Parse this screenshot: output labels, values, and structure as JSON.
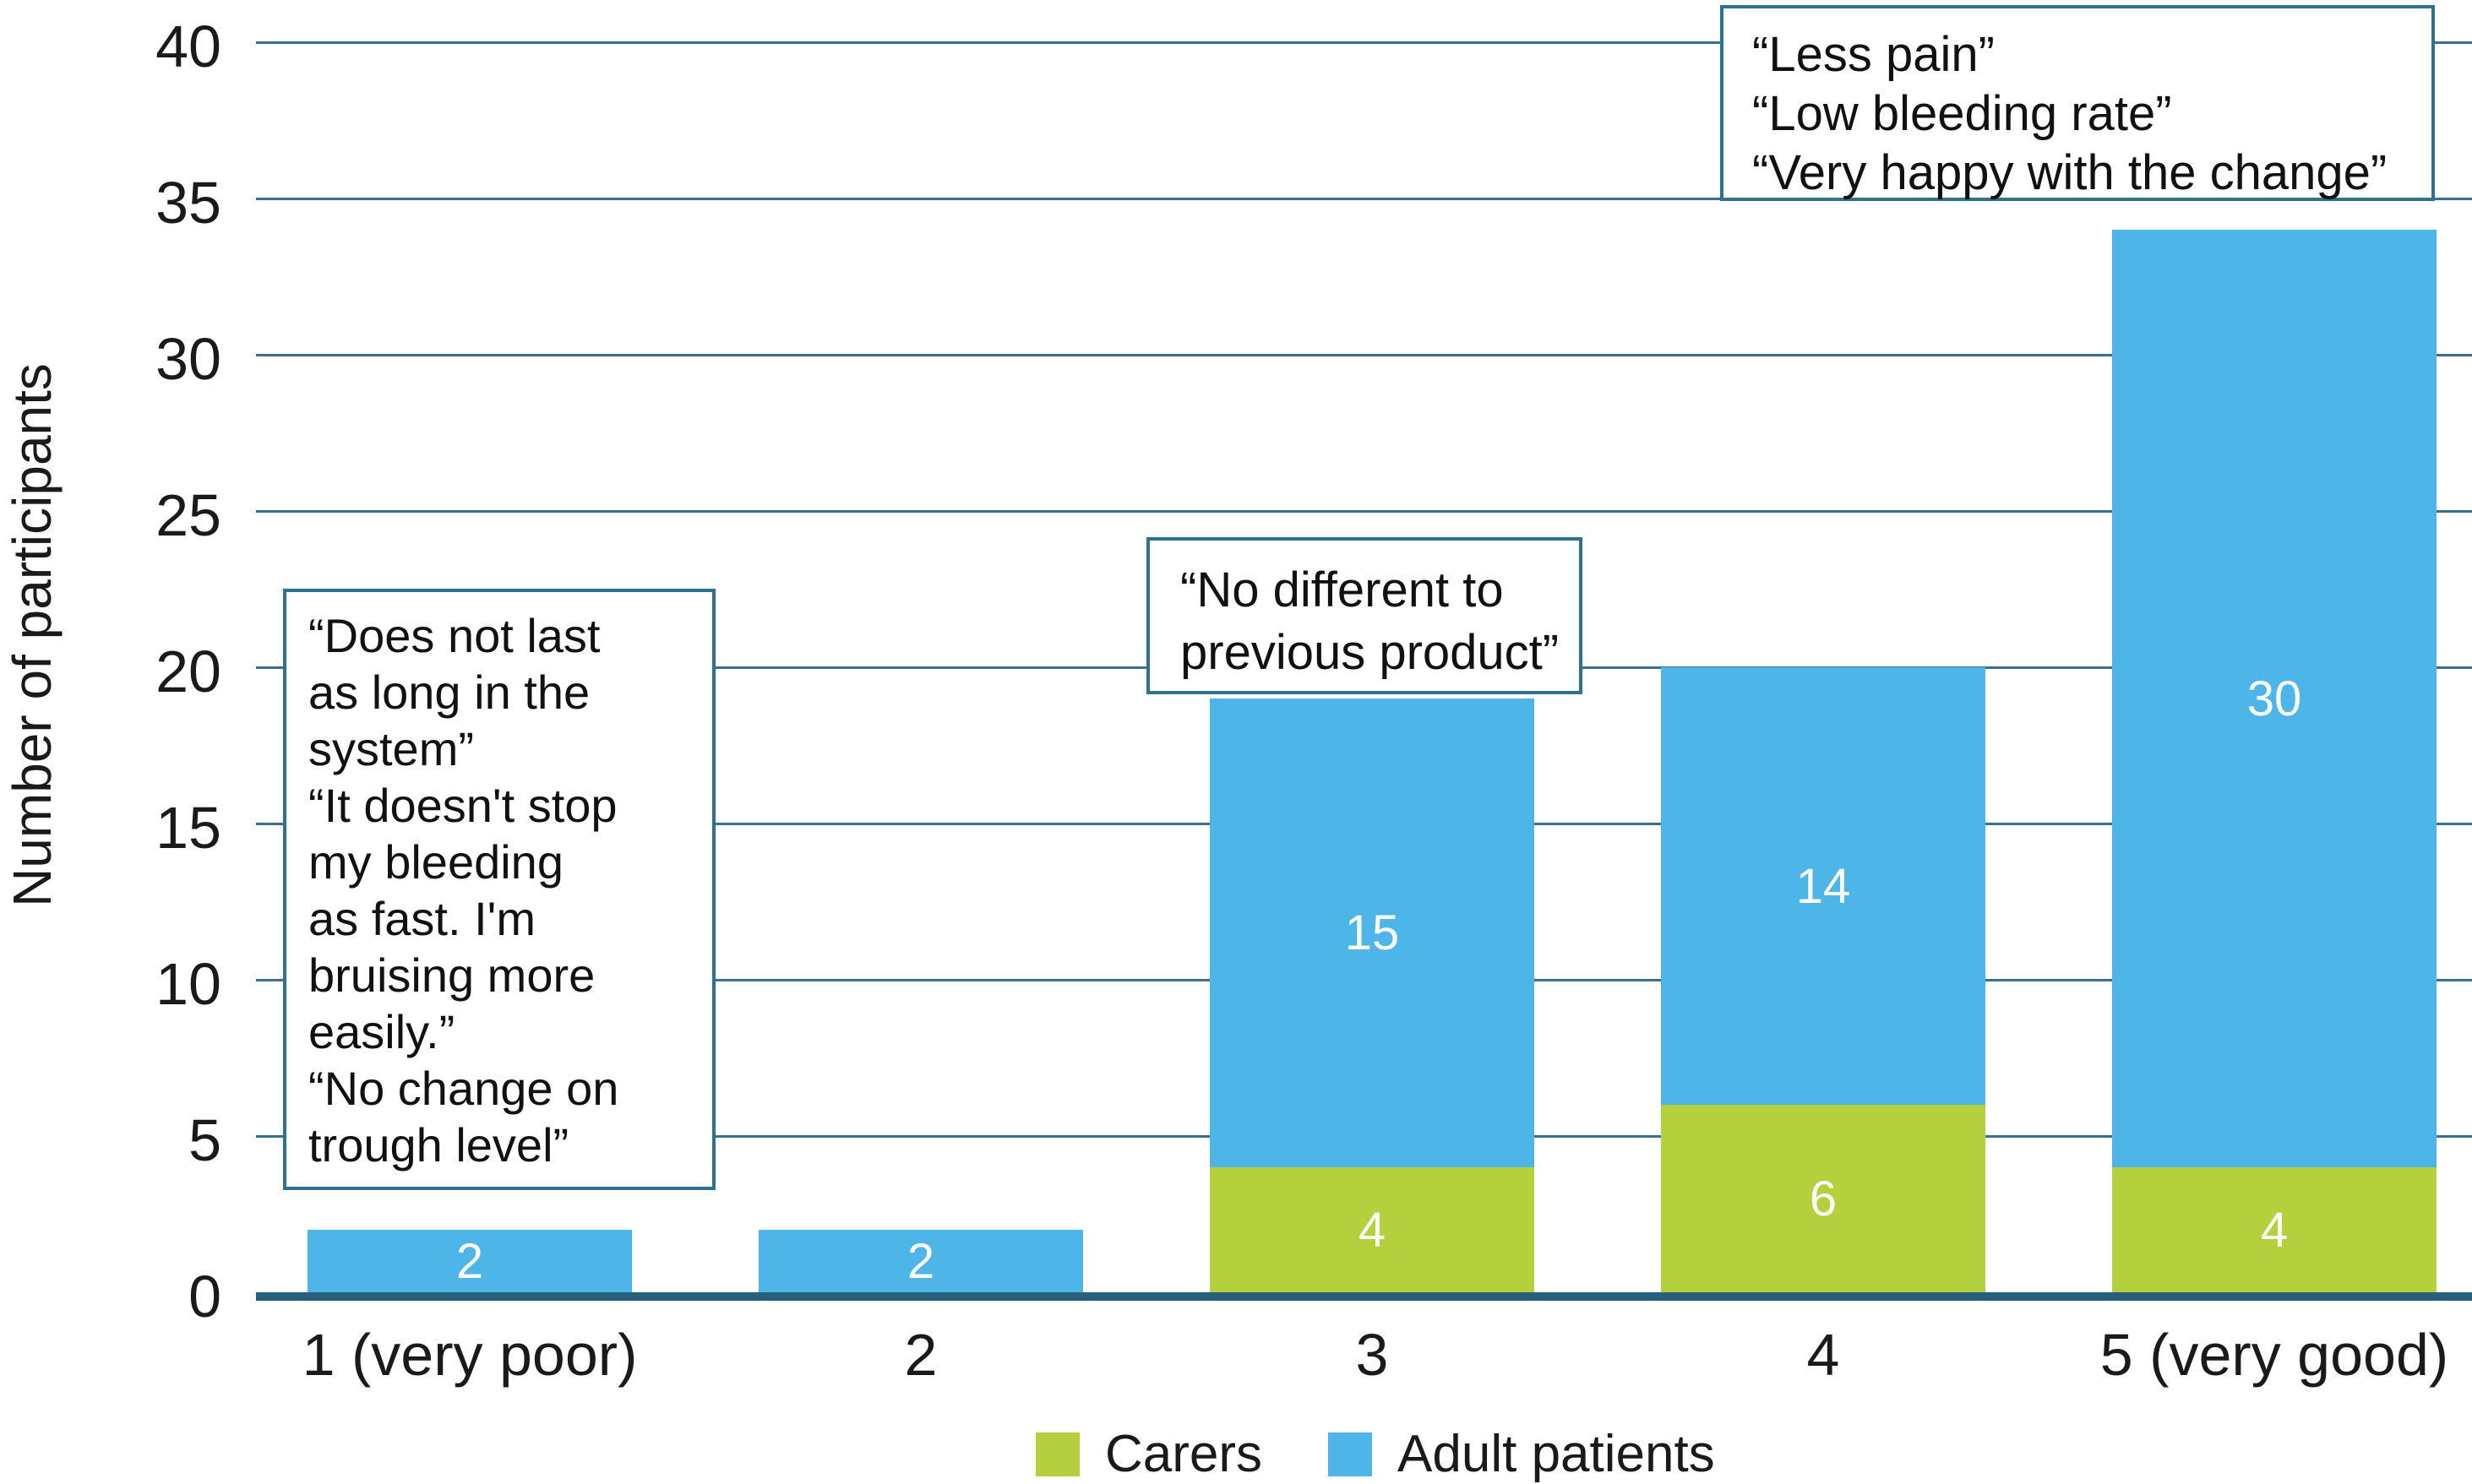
{
  "chart_data": {
    "type": "bar",
    "stacked": true,
    "categories": [
      "1 (very poor)",
      "2",
      "3",
      "4",
      "5 (very good)"
    ],
    "series": [
      {
        "name": "Carers",
        "color": "#b5d03d",
        "values": [
          0,
          0,
          4,
          6,
          4
        ]
      },
      {
        "name": "Adult patients",
        "color": "#4db5e8",
        "values": [
          2,
          2,
          15,
          14,
          30
        ]
      }
    ],
    "totals": [
      2,
      2,
      19,
      20,
      34
    ],
    "xlabel": "",
    "ylabel": "Number of participants",
    "ylim": [
      0,
      40
    ],
    "yticks": [
      0,
      5,
      10,
      15,
      20,
      25,
      30,
      35,
      40
    ],
    "grid": true,
    "legend_position": "bottom",
    "annotations": [
      {
        "target_category": "1 (very poor)",
        "lines": [
          "“Does not last",
          "as long in the",
          "system”",
          "“It doesn't stop",
          "my bleeding",
          "as fast. I'm",
          "bruising more",
          "easily.”",
          "“No change on",
          "trough level”"
        ]
      },
      {
        "target_category": "3",
        "lines": [
          "“No different to",
          "previous product”"
        ]
      },
      {
        "target_category": "5 (very good)",
        "lines": [
          "“Less pain”",
          "“Low bleeding rate”",
          "“Very happy with the change”"
        ]
      }
    ]
  },
  "colors": {
    "axis_line": "#26607c",
    "gridline": "#3a708e",
    "note_border": "#2f7191",
    "bar_label": "#ffffff"
  }
}
